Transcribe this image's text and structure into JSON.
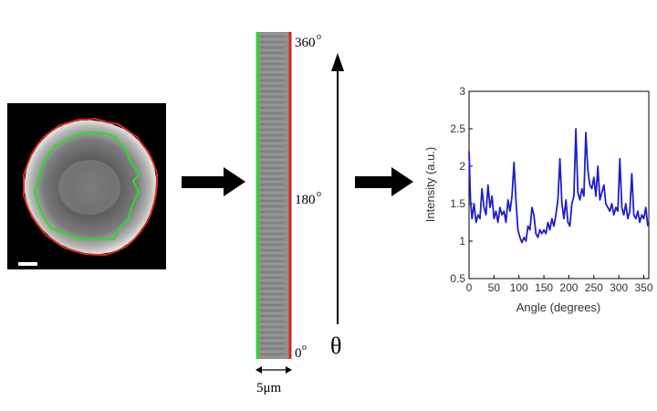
{
  "kymograph": {
    "top_label": "360",
    "mid_label": "180",
    "bottom_label": "0",
    "degree_mark": "o",
    "width_label": "5μm"
  },
  "theta_symbol": "θ",
  "colors": {
    "outer_contour": "#d42a1e",
    "inner_contour": "#2adc2a",
    "series": "#1f1fc8",
    "arrow": "#000000"
  },
  "chart_data": {
    "type": "line",
    "xlabel": "Angle (degrees)",
    "ylabel": "Intensity (a.u.)",
    "xlim": [
      0,
      360
    ],
    "ylim": [
      0.5,
      3
    ],
    "xticks": [
      "0",
      "50",
      "100",
      "150",
      "200",
      "250",
      "300",
      "350"
    ],
    "yticks": [
      "0.5",
      "1",
      "1.5",
      "2",
      "2.5",
      "3"
    ],
    "x": [
      0,
      3,
      6,
      10,
      14,
      18,
      22,
      26,
      30,
      34,
      38,
      42,
      46,
      50,
      54,
      58,
      62,
      66,
      70,
      74,
      78,
      82,
      86,
      90,
      94,
      98,
      102,
      106,
      110,
      114,
      118,
      122,
      126,
      130,
      134,
      138,
      142,
      146,
      150,
      154,
      158,
      162,
      166,
      170,
      174,
      178,
      182,
      186,
      190,
      194,
      198,
      202,
      206,
      210,
      214,
      218,
      222,
      226,
      230,
      234,
      238,
      242,
      246,
      250,
      254,
      258,
      262,
      266,
      270,
      274,
      278,
      282,
      286,
      290,
      294,
      298,
      302,
      306,
      310,
      314,
      318,
      322,
      326,
      330,
      334,
      338,
      342,
      346,
      350,
      354,
      358
    ],
    "y": [
      2.2,
      1.55,
      1.3,
      1.5,
      1.25,
      1.35,
      1.3,
      1.7,
      1.45,
      1.35,
      1.75,
      1.45,
      1.6,
      1.3,
      1.4,
      1.25,
      1.45,
      1.35,
      1.4,
      1.25,
      1.55,
      1.4,
      1.6,
      2.05,
      1.55,
      1.15,
      1.05,
      0.98,
      1.05,
      1.0,
      1.2,
      1.15,
      1.45,
      1.35,
      1.1,
      1.05,
      1.15,
      1.1,
      1.15,
      1.1,
      1.25,
      1.15,
      1.3,
      1.2,
      1.35,
      1.55,
      2.1,
      1.5,
      1.3,
      1.55,
      1.25,
      1.2,
      1.5,
      1.6,
      2.5,
      1.65,
      1.55,
      1.7,
      1.6,
      2.45,
      1.95,
      1.75,
      1.7,
      1.85,
      1.6,
      2.0,
      1.55,
      1.65,
      1.75,
      1.5,
      1.45,
      1.4,
      1.5,
      1.35,
      1.45,
      1.4,
      2.1,
      1.45,
      1.35,
      1.5,
      1.3,
      1.4,
      1.9,
      1.35,
      1.3,
      1.4,
      1.25,
      1.35,
      1.3,
      1.45,
      1.2
    ],
    "grid": false
  }
}
